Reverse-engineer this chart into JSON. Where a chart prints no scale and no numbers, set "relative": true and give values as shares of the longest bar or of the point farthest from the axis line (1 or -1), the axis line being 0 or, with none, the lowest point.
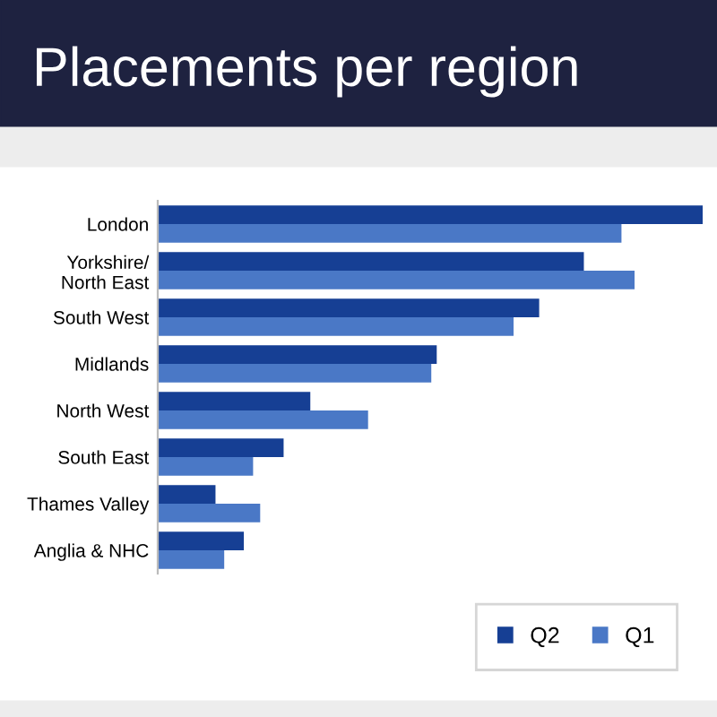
{
  "chart_data": {
    "type": "bar",
    "orientation": "horizontal",
    "relative": true,
    "title": "Placements per region",
    "categories": [
      "London",
      "Yorkshire/\nNorth East",
      "South West",
      "Midlands",
      "North West",
      "South East",
      "Thames Valley",
      "Anglia & NHC"
    ],
    "series": [
      {
        "name": "Q2",
        "color": "#163f94",
        "values": [
          1.0,
          0.782,
          0.7,
          0.512,
          0.28,
          0.231,
          0.106,
          0.158
        ]
      },
      {
        "name": "Q1",
        "color": "#4a78c6",
        "values": [
          0.851,
          0.875,
          0.653,
          0.502,
          0.386,
          0.175,
          0.188,
          0.122
        ]
      }
    ],
    "legend": "bottom right",
    "grid": false
  }
}
